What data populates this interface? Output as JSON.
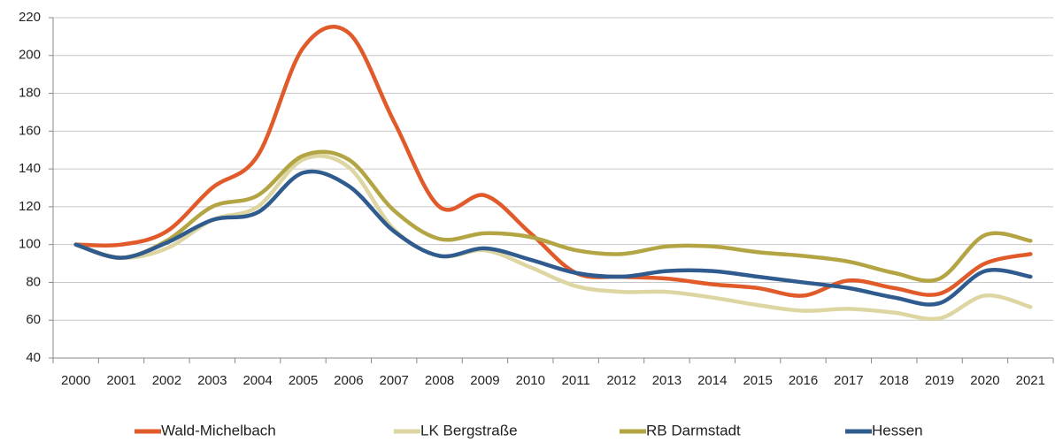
{
  "chart_data": {
    "type": "line",
    "categories": [
      "2000",
      "2001",
      "2002",
      "2003",
      "2004",
      "2005",
      "2006",
      "2007",
      "2008",
      "2009",
      "2010",
      "2011",
      "2012",
      "2013",
      "2014",
      "2015",
      "2016",
      "2017",
      "2018",
      "2019",
      "2020",
      "2021"
    ],
    "series": [
      {
        "name": "Wald-Michelbach",
        "color": "#e05a2a",
        "values": [
          100,
          100,
          107,
          130,
          147,
          204,
          212,
          165,
          120,
          126,
          106,
          85,
          83,
          82,
          79,
          77,
          73,
          81,
          77,
          74,
          90,
          95
        ]
      },
      {
        "name": "LK Bergstraße",
        "color": "#ddd6a2",
        "values": [
          100,
          93,
          98,
          113,
          120,
          145,
          141,
          108,
          94,
          97,
          88,
          78,
          75,
          75,
          72,
          68,
          65,
          66,
          64,
          61,
          73,
          67
        ]
      },
      {
        "name": "RB Darmstadt",
        "color": "#b4a544",
        "values": [
          100,
          93,
          102,
          120,
          126,
          147,
          145,
          118,
          103,
          106,
          104,
          97,
          95,
          99,
          99,
          96,
          94,
          91,
          85,
          82,
          105,
          102
        ]
      },
      {
        "name": "Hessen",
        "color": "#2f5b8e",
        "values": [
          100,
          93,
          101,
          113,
          117,
          138,
          131,
          107,
          94,
          98,
          92,
          85,
          83,
          86,
          86,
          83,
          80,
          77,
          72,
          69,
          86,
          83
        ]
      }
    ],
    "ylim": [
      40,
      220
    ],
    "yticks": [
      40,
      60,
      80,
      100,
      120,
      140,
      160,
      180,
      200,
      220
    ],
    "grid": true,
    "legend": "bottom"
  }
}
